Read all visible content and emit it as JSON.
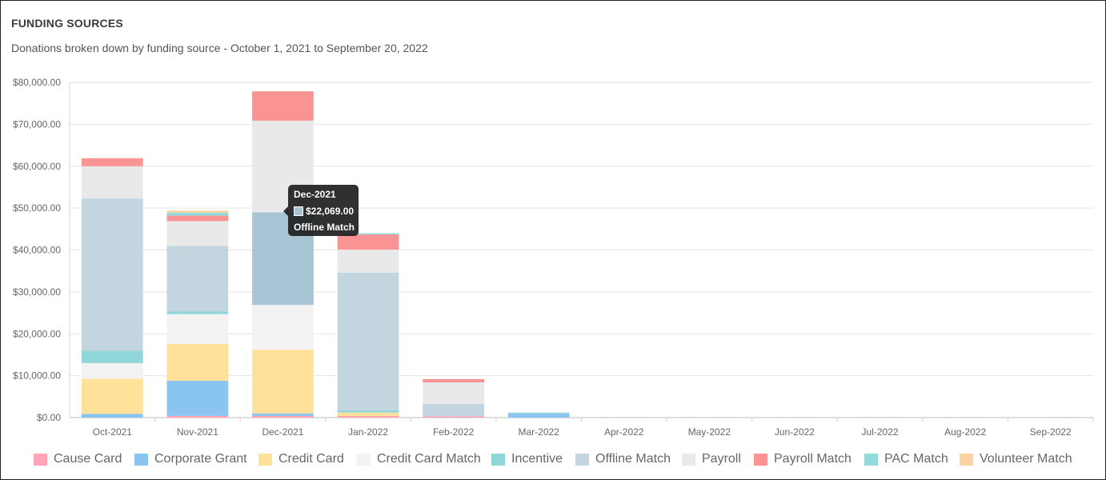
{
  "header": {
    "title": "FUNDING SOURCES",
    "subtitle": "Donations broken down by funding source - October 1, 2021 to September 20, 2022"
  },
  "tooltip": {
    "title": "Dec-2021",
    "value": "$22,069.00",
    "series": "Offline Match",
    "color": "#a8c5d6"
  },
  "chart_data": {
    "type": "bar",
    "stacked": true,
    "categories": [
      "Oct-2021",
      "Nov-2021",
      "Dec-2021",
      "Jan-2022",
      "Feb-2022",
      "Mar-2022",
      "Apr-2022",
      "May-2022",
      "Jun-2022",
      "Jul-2022",
      "Aug-2022",
      "Sep-2022"
    ],
    "ylim": [
      0,
      80000
    ],
    "yticks": [
      "$0.00",
      "$10,000.00",
      "$20,000.00",
      "$30,000.00",
      "$40,000.00",
      "$50,000.00",
      "$60,000.00",
      "$70,000.00",
      "$80,000.00"
    ],
    "grid": true,
    "legend": "bottom",
    "series": [
      {
        "name": "Cause Card",
        "color": "#ffa4b5",
        "values": [
          0,
          400,
          400,
          400,
          300,
          0,
          0,
          0,
          0,
          0,
          0,
          0
        ]
      },
      {
        "name": "Corporate Grant",
        "color": "#8ac4f1",
        "values": [
          900,
          8400,
          600,
          0,
          0,
          900,
          0,
          0,
          0,
          0,
          0,
          0
        ]
      },
      {
        "name": "Credit Card",
        "color": "#ffe199",
        "values": [
          8400,
          8800,
          15200,
          800,
          0,
          0,
          0,
          0,
          0,
          0,
          0,
          0
        ]
      },
      {
        "name": "Credit Card Match",
        "color": "#f2f2f2",
        "values": [
          3700,
          7100,
          10700,
          0,
          0,
          0,
          0,
          0,
          0,
          0,
          0,
          0
        ]
      },
      {
        "name": "Incentive",
        "color": "#90d6d8",
        "values": [
          3000,
          600,
          0,
          500,
          0,
          300,
          0,
          0,
          0,
          0,
          0,
          0
        ]
      },
      {
        "name": "Offline Match",
        "color": "#c3d6e0",
        "values": [
          36300,
          15700,
          22069,
          32900,
          3000,
          0,
          0,
          0,
          0,
          0,
          0,
          0
        ]
      },
      {
        "name": "Payroll",
        "color": "#e9e9e9",
        "values": [
          7700,
          5900,
          21900,
          5500,
          5100,
          0,
          0,
          0,
          0,
          0,
          0,
          0
        ]
      },
      {
        "name": "Payroll Match",
        "color": "#fa9393",
        "values": [
          1900,
          1300,
          7000,
          3600,
          800,
          0,
          0,
          0,
          0,
          0,
          0,
          0
        ]
      },
      {
        "name": "PAC Match",
        "color": "#93dada",
        "values": [
          0,
          700,
          0,
          300,
          0,
          0,
          0,
          0,
          0,
          0,
          0,
          0
        ]
      },
      {
        "name": "Volunteer Match",
        "color": "#fdd3a1",
        "values": [
          0,
          500,
          0,
          0,
          0,
          0,
          0,
          0,
          0,
          0,
          0,
          0
        ]
      }
    ],
    "highlight": {
      "category": "Dec-2021",
      "series": "Offline Match",
      "color": "#a8c5d6"
    }
  }
}
